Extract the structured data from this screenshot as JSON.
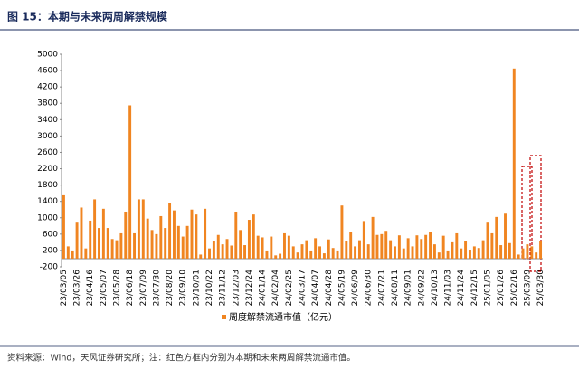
{
  "chart_data": {
    "type": "bar",
    "title": "图 15：本期与未来两周解禁规模",
    "legend": "周度解禁流通市值（亿元）",
    "note": "资料来源：Wind，天风证券研究所；注：红色方框内分别为本期和未来两周解禁流通市值。",
    "color": "#f08521",
    "ylim": [
      -200,
      5000
    ],
    "yticks": [
      -200,
      200,
      600,
      1000,
      1400,
      1800,
      2200,
      2600,
      3000,
      3400,
      3800,
      4200,
      4600,
      5000
    ],
    "categories": [
      "23/03/05",
      null,
      null,
      "23/03/26",
      null,
      null,
      "23/04/16",
      null,
      null,
      "23/05/07",
      null,
      null,
      "23/05/28",
      null,
      null,
      "23/06/18",
      null,
      null,
      "23/07/09",
      null,
      null,
      "23/07/30",
      null,
      null,
      "23/08/20",
      null,
      null,
      "23/09/10",
      null,
      null,
      "23/10/01",
      null,
      null,
      "23/10/22",
      null,
      null,
      "23/11/12",
      null,
      null,
      "23/12/03",
      null,
      null,
      "23/12/24",
      null,
      null,
      "24/01/14",
      null,
      null,
      "24/02/04",
      null,
      null,
      "24/02/25",
      null,
      null,
      "24/03/17",
      null,
      null,
      "24/04/07",
      null,
      null,
      "24/04/28",
      null,
      null,
      "24/05/19",
      null,
      null,
      "24/06/09",
      null,
      null,
      "24/06/30",
      null,
      null,
      "24/07/21",
      null,
      null,
      "24/08/11",
      null,
      null,
      "24/09/01",
      null,
      null,
      "24/09/22",
      null,
      null,
      "24/10/13",
      null,
      null,
      "24/11/03",
      null,
      null,
      "24/11/24",
      null,
      null,
      "24/12/15",
      null,
      null,
      "25/01/05",
      null,
      null,
      "25/01/26",
      null,
      null,
      "25/02/16",
      null,
      null,
      "25/03/09",
      null,
      null,
      "25/03/30"
    ],
    "values": [
      1550,
      300,
      200,
      880,
      1250,
      250,
      930,
      1450,
      750,
      1220,
      750,
      480,
      450,
      620,
      1150,
      3750,
      620,
      1450,
      1450,
      980,
      700,
      600,
      1040,
      750,
      1370,
      1180,
      800,
      540,
      800,
      1200,
      1080,
      100,
      1220,
      250,
      420,
      580,
      350,
      480,
      320,
      1150,
      700,
      330,
      950,
      1080,
      560,
      520,
      200,
      540,
      80,
      120,
      620,
      560,
      300,
      150,
      350,
      450,
      200,
      500,
      300,
      130,
      470,
      260,
      200,
      1300,
      420,
      650,
      300,
      450,
      920,
      350,
      1020,
      580,
      600,
      680,
      450,
      300,
      570,
      250,
      500,
      300,
      570,
      480,
      580,
      660,
      350,
      150,
      560,
      200,
      400,
      620,
      250,
      430,
      220,
      300,
      260,
      450,
      880,
      620,
      1020,
      330,
      1100,
      380,
      4650,
      100,
      250,
      350,
      300,
      150,
      420
    ]
  }
}
